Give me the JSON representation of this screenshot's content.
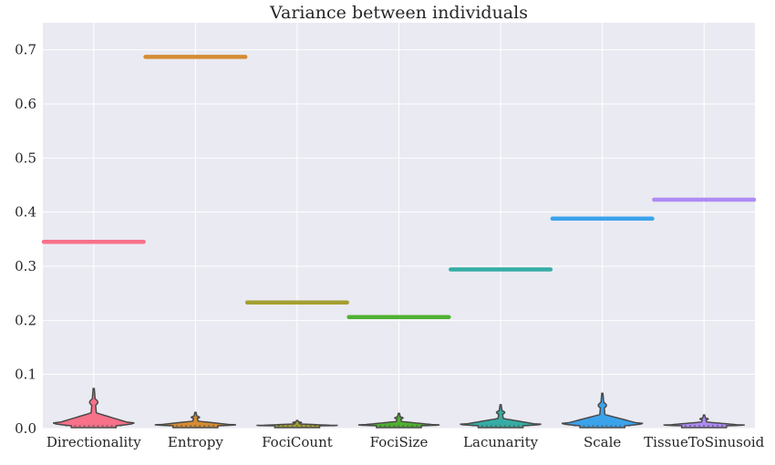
{
  "chart_data": {
    "type": "violin",
    "title": "Variance between individuals",
    "xlabel": "",
    "ylabel": "",
    "ylim": [
      0,
      0.75
    ],
    "yticks": [
      "0.0",
      "0.1",
      "0.2",
      "0.3",
      "0.4",
      "0.5",
      "0.6",
      "0.7"
    ],
    "grid": true,
    "categories": [
      "Directionality",
      "Entropy",
      "FociCount",
      "FociSize",
      "Lacunarity",
      "Scale",
      "TissueToSinusoid"
    ],
    "colors": [
      "#f77189",
      "#d58c32",
      "#a4a031",
      "#50b131",
      "#36ada4",
      "#3ba3ec",
      "#ae8bf5"
    ],
    "reference_lines": [
      0.345,
      0.687,
      0.233,
      0.206,
      0.294,
      0.388,
      0.423
    ],
    "violin_max": [
      0.074,
      0.03,
      0.015,
      0.028,
      0.044,
      0.065,
      0.025
    ]
  }
}
